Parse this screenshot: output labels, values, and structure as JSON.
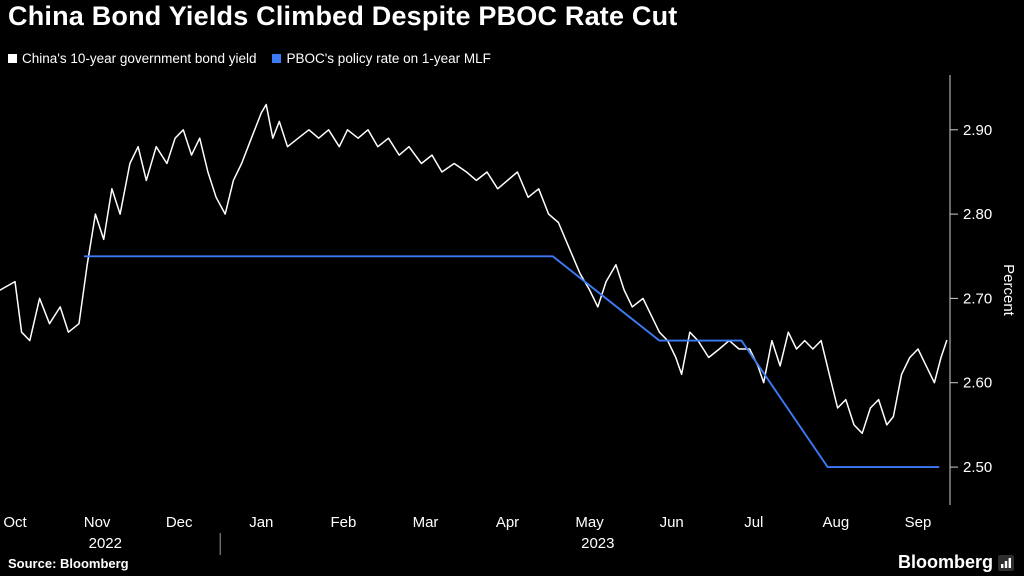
{
  "header": {
    "title": "China Bond Yields Climbed Despite PBOC Rate Cut"
  },
  "legend": [
    {
      "label": "China's 10-year government bond yield",
      "color": "#ffffff"
    },
    {
      "label": "PBOC's policy rate on 1-year MLF",
      "color": "#3d7af5"
    }
  ],
  "chart_data": {
    "type": "line",
    "title": "China Bond Yields Climbed Despite PBOC Rate Cut",
    "ylabel": "Percent",
    "y_axis_side": "right",
    "grid": false,
    "legend_position": "top-left",
    "y_ticks": [
      2.9,
      2.8,
      2.7,
      2.6,
      2.5
    ],
    "ylim": [
      2.455,
      2.965
    ],
    "x_unit": "months since Oct 2022",
    "xlim": [
      -0.2,
      11.6
    ],
    "x_tick_labels": [
      "Oct",
      "Nov",
      "Dec",
      "Jan",
      "Feb",
      "Mar",
      "Apr",
      "May",
      "Jun",
      "Jul",
      "Aug",
      "Sep"
    ],
    "year_labels": [
      {
        "text": "2022",
        "month_index": 1.1
      },
      {
        "text": "2023",
        "month_index": 7.1
      }
    ],
    "year_divider_month": 2.5,
    "series": [
      {
        "name": "PBOC's policy rate on 1-year MLF",
        "color": "#3d7af5",
        "width": 1.9,
        "x": [
          0.85,
          6.55,
          7.85,
          8.85,
          9.9,
          11.25
        ],
        "values": [
          2.75,
          2.75,
          2.65,
          2.65,
          2.5,
          2.5
        ]
      },
      {
        "name": "China's 10-year government bond yield",
        "color": "#ffffff",
        "width": 1.5,
        "x": [
          -0.18,
          0.0,
          0.08,
          0.18,
          0.3,
          0.42,
          0.55,
          0.65,
          0.78,
          0.88,
          0.98,
          1.08,
          1.18,
          1.28,
          1.4,
          1.5,
          1.6,
          1.72,
          1.85,
          1.95,
          2.05,
          2.15,
          2.25,
          2.35,
          2.45,
          2.56,
          2.66,
          2.76,
          2.88,
          3.0,
          3.06,
          3.14,
          3.22,
          3.32,
          3.45,
          3.58,
          3.7,
          3.82,
          3.95,
          4.05,
          4.18,
          4.3,
          4.42,
          4.55,
          4.68,
          4.8,
          4.95,
          5.08,
          5.2,
          5.35,
          5.5,
          5.62,
          5.75,
          5.88,
          6.0,
          6.12,
          6.25,
          6.38,
          6.5,
          6.62,
          6.75,
          6.88,
          7.0,
          7.1,
          7.2,
          7.32,
          7.42,
          7.52,
          7.65,
          7.75,
          7.85,
          7.95,
          8.05,
          8.12,
          8.22,
          8.32,
          8.45,
          8.58,
          8.7,
          8.82,
          8.95,
          9.05,
          9.12,
          9.22,
          9.32,
          9.42,
          9.52,
          9.62,
          9.72,
          9.82,
          9.92,
          10.02,
          10.12,
          10.22,
          10.32,
          10.42,
          10.52,
          10.62,
          10.7,
          10.8,
          10.9,
          11.0,
          11.1,
          11.2,
          11.28,
          11.35
        ],
        "values": [
          2.71,
          2.72,
          2.66,
          2.65,
          2.7,
          2.67,
          2.69,
          2.66,
          2.67,
          2.74,
          2.8,
          2.77,
          2.83,
          2.8,
          2.86,
          2.88,
          2.84,
          2.88,
          2.86,
          2.89,
          2.9,
          2.87,
          2.89,
          2.85,
          2.82,
          2.8,
          2.84,
          2.86,
          2.89,
          2.92,
          2.93,
          2.89,
          2.91,
          2.88,
          2.89,
          2.9,
          2.89,
          2.9,
          2.88,
          2.9,
          2.89,
          2.9,
          2.88,
          2.89,
          2.87,
          2.88,
          2.86,
          2.87,
          2.85,
          2.86,
          2.85,
          2.84,
          2.85,
          2.83,
          2.84,
          2.85,
          2.82,
          2.83,
          2.8,
          2.79,
          2.76,
          2.73,
          2.71,
          2.69,
          2.72,
          2.74,
          2.71,
          2.69,
          2.7,
          2.68,
          2.66,
          2.65,
          2.63,
          2.61,
          2.66,
          2.65,
          2.63,
          2.64,
          2.65,
          2.64,
          2.64,
          2.62,
          2.6,
          2.65,
          2.62,
          2.66,
          2.64,
          2.65,
          2.64,
          2.65,
          2.61,
          2.57,
          2.58,
          2.55,
          2.54,
          2.57,
          2.58,
          2.55,
          2.56,
          2.61,
          2.63,
          2.64,
          2.62,
          2.6,
          2.63,
          2.65
        ]
      }
    ]
  },
  "footer": {
    "source": "Source: Bloomberg",
    "brand": "Bloomberg"
  }
}
